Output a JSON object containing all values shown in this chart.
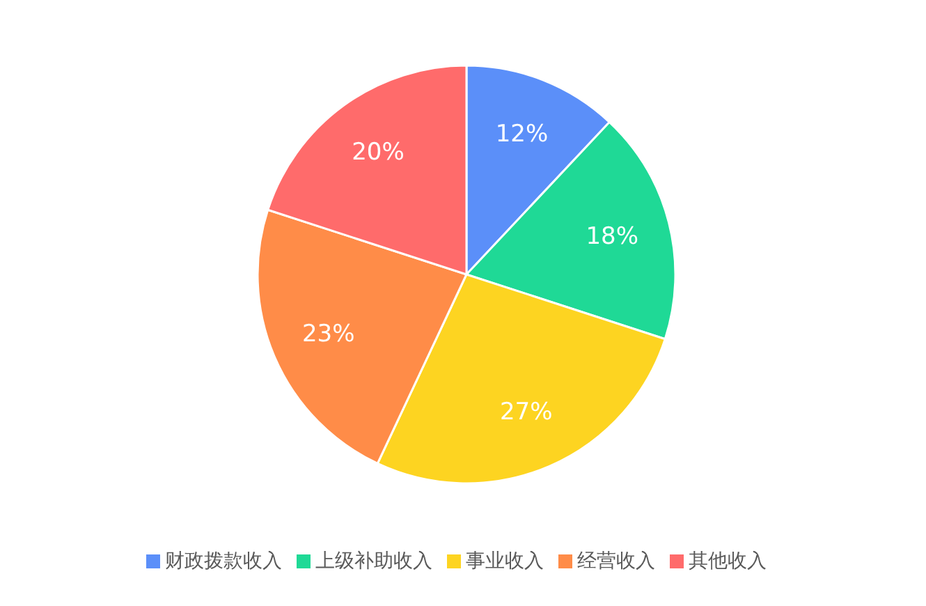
{
  "chart_data": {
    "type": "pie",
    "categories": [
      "财政拨款收入",
      "上级补助收入",
      "事业收入",
      "经营收入",
      "其他收入"
    ],
    "values": [
      12,
      18,
      27,
      23,
      20
    ],
    "colors": [
      "#5b8ff9",
      "#1fd996",
      "#fdd421",
      "#ff8c48",
      "#ff6b6b"
    ],
    "value_labels": [
      "12%",
      "18%",
      "27%",
      "23%",
      "20%"
    ],
    "legend": "bottom"
  }
}
